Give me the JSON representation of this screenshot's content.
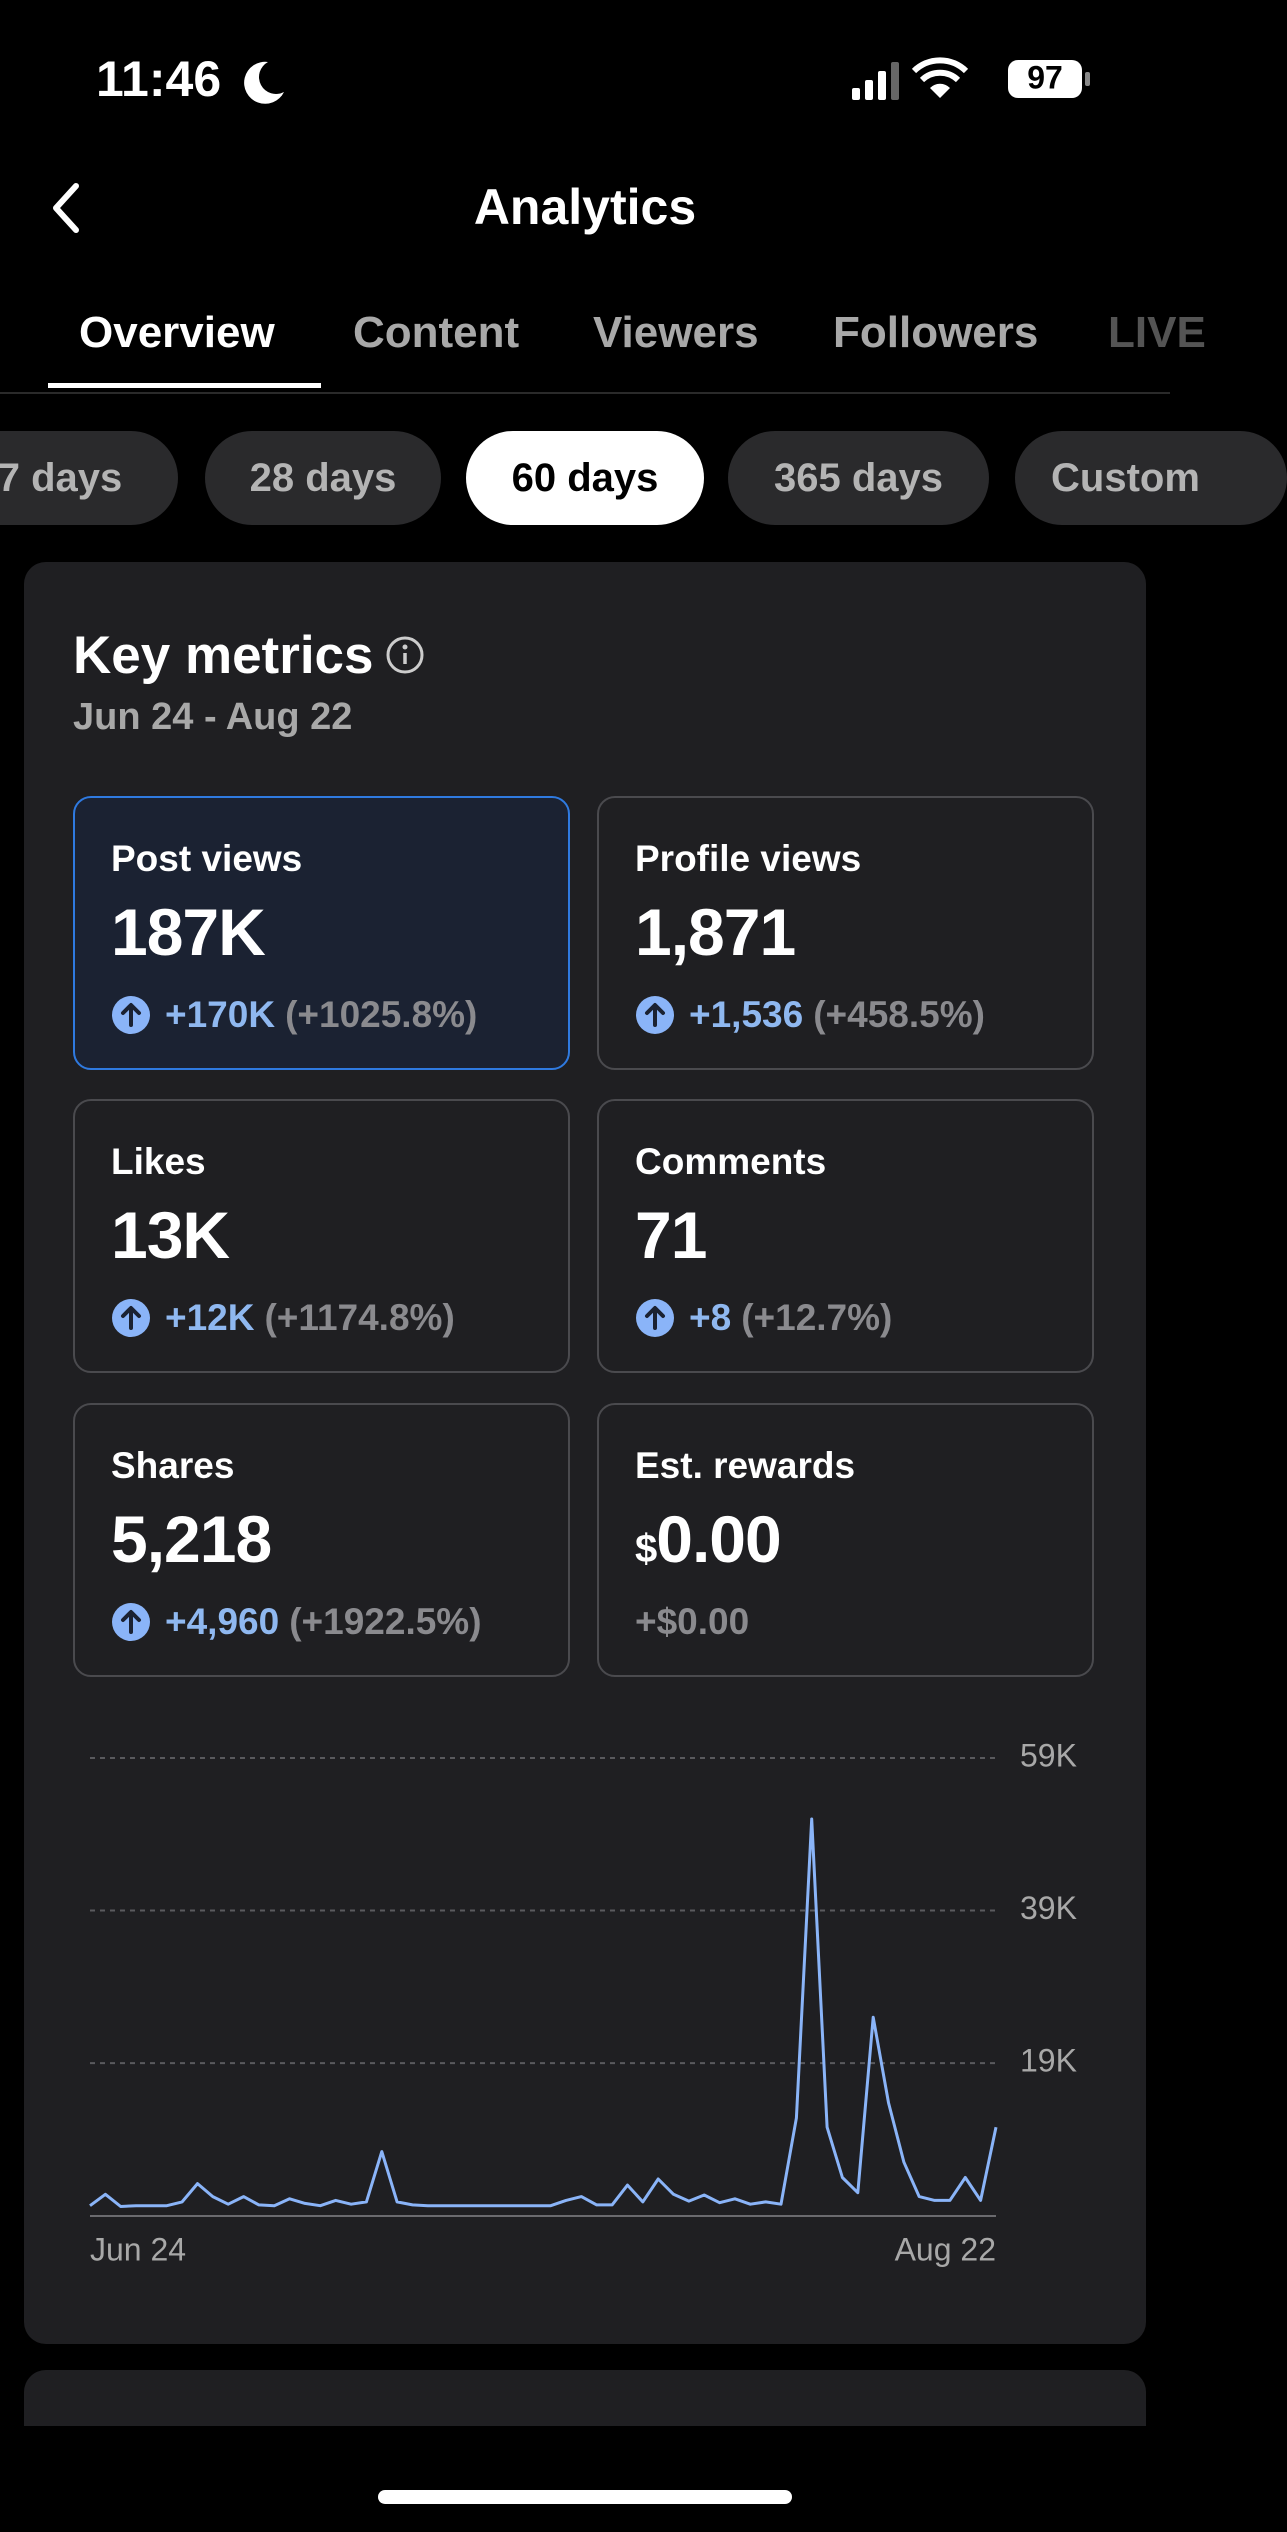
{
  "status_bar": {
    "time": "11:46",
    "battery": "97"
  },
  "header": {
    "title": "Analytics"
  },
  "tabs": [
    "Overview",
    "Content",
    "Viewers",
    "Followers",
    "LIVE"
  ],
  "periods": [
    "7 days",
    "28 days",
    "60 days",
    "365 days",
    "Custom"
  ],
  "key_metrics": {
    "title": "Key metrics",
    "date_range": "Jun 24 - Aug 22",
    "metrics": [
      {
        "label": "Post views",
        "value": "187K",
        "change": "+170K",
        "change_pct": "(+1025.8%)"
      },
      {
        "label": "Profile views",
        "value": "1,871",
        "change": "+1,536",
        "change_pct": "(+458.5%)"
      },
      {
        "label": "Likes",
        "value": "13K",
        "change": "+12K",
        "change_pct": "(+1174.8%)"
      },
      {
        "label": "Comments",
        "value": "71",
        "change": "+8",
        "change_pct": "(+12.7%)"
      },
      {
        "label": "Shares",
        "value": "5,218",
        "change": "+4,960",
        "change_pct": "(+1922.5%)"
      },
      {
        "label": "Est. rewards",
        "currency": "$",
        "value": "0.00",
        "change": "+$0.00"
      }
    ]
  },
  "chart_data": {
    "type": "line",
    "color": "#8ab4f8",
    "categories": [
      "Jun 24",
      null,
      null,
      null,
      null,
      null,
      null,
      null,
      null,
      null,
      null,
      null,
      null,
      null,
      null,
      null,
      null,
      null,
      null,
      null,
      null,
      null,
      null,
      null,
      null,
      null,
      null,
      null,
      null,
      null,
      null,
      null,
      null,
      null,
      null,
      null,
      null,
      null,
      null,
      null,
      null,
      null,
      null,
      null,
      null,
      null,
      null,
      null,
      null,
      null,
      null,
      null,
      null,
      null,
      null,
      null,
      null,
      null,
      null,
      "Aug 22"
    ],
    "values": [
      300,
      1800,
      200,
      300,
      300,
      300,
      800,
      3200,
      1500,
      500,
      1500,
      400,
      300,
      1200,
      600,
      300,
      1000,
      500,
      800,
      7400,
      800,
      400,
      300,
      300,
      300,
      300,
      300,
      300,
      300,
      300,
      300,
      1000,
      1500,
      400,
      400,
      3000,
      800,
      3800,
      1800,
      900,
      1700,
      700,
      1200,
      500,
      800,
      500,
      11800,
      51000,
      10600,
      4000,
      2000,
      25000,
      13800,
      6000,
      1500,
      1000,
      1000,
      4000,
      1000,
      10600
    ],
    "ylim": [
      0,
      59000
    ],
    "yticks": [
      {
        "value": 19000,
        "label": "19K"
      },
      {
        "value": 39000,
        "label": "39K"
      },
      {
        "value": 59000,
        "label": "59K"
      }
    ],
    "grid": true
  }
}
